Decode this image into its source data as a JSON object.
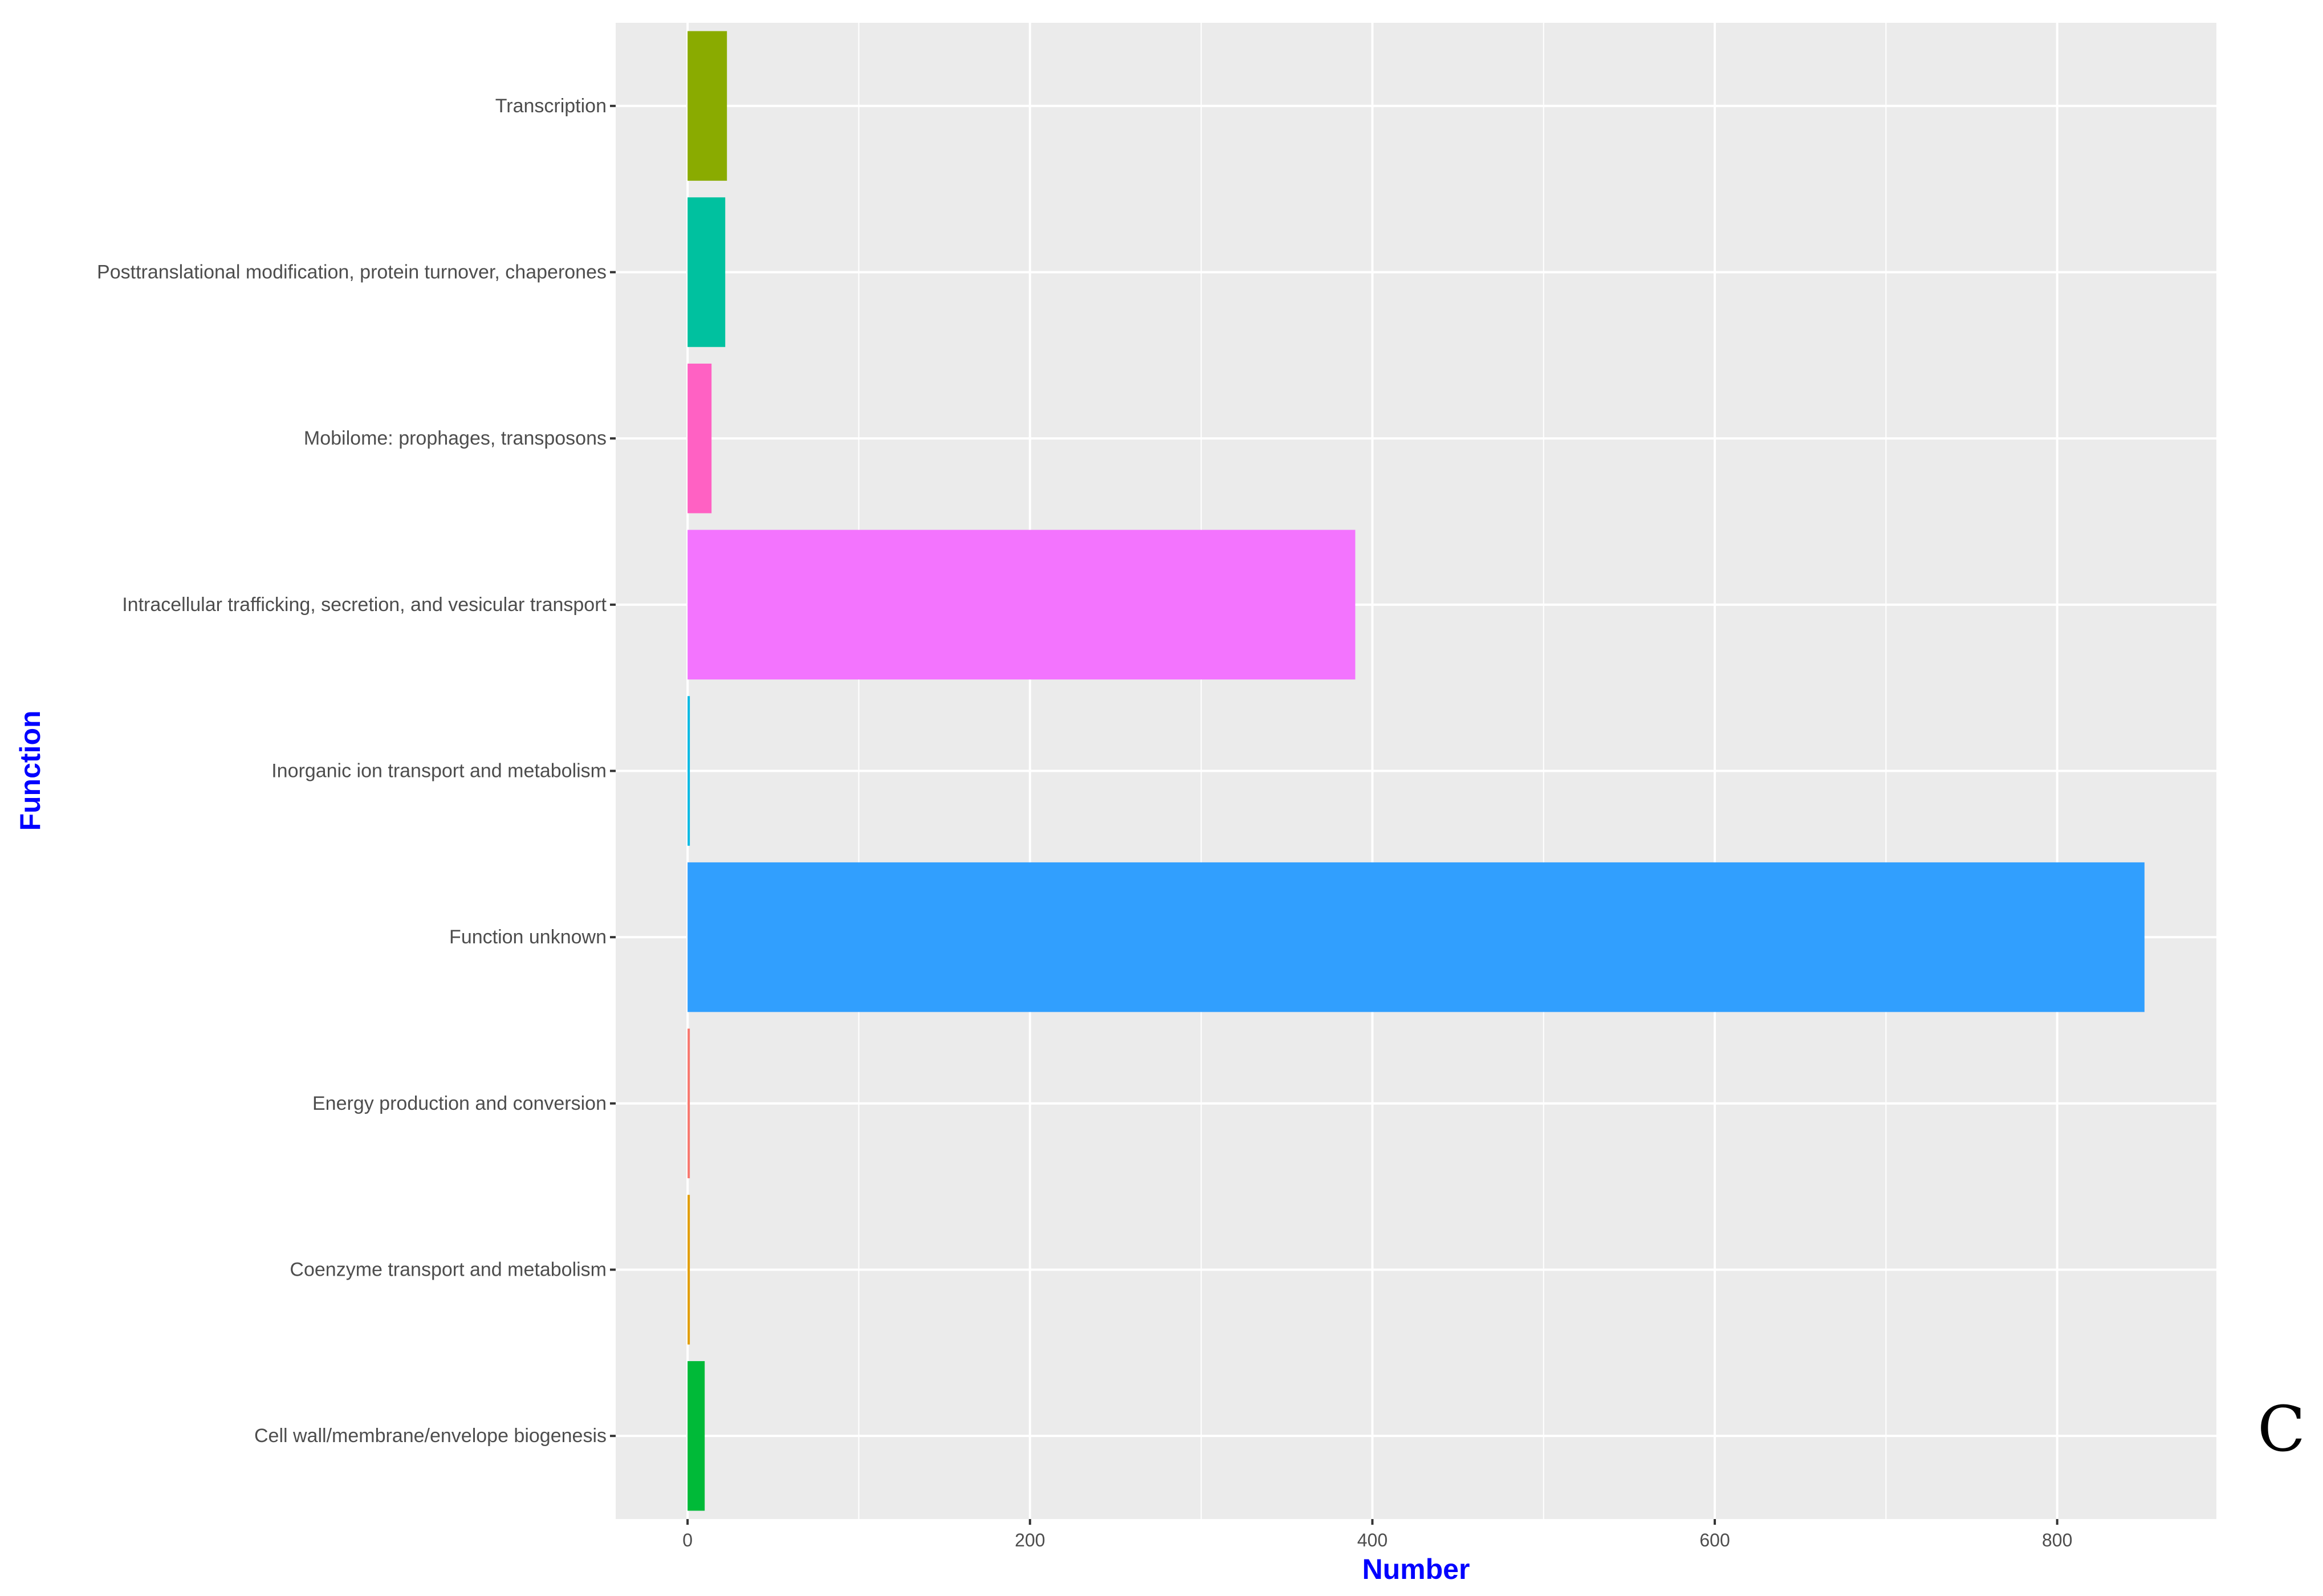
{
  "chart_data": {
    "type": "bar",
    "orientation": "horizontal",
    "categories": [
      "Transcription",
      "Posttranslational modification, protein turnover, chaperones",
      "Mobilome: prophages, transposons",
      "Intracellular trafficking, secretion, and vesicular transport",
      "Inorganic ion transport and metabolism",
      "Function unknown",
      "Energy production and conversion",
      "Coenzyme transport and metabolism",
      "Cell wall/membrane/envelope biogenesis"
    ],
    "values": [
      23,
      22,
      14,
      390,
      1,
      851,
      1,
      1,
      10
    ],
    "colors": [
      "#8aab00",
      "#00c19f",
      "#ff61c3",
      "#f374fe",
      "#00b9e3",
      "#319ffe",
      "#f8766d",
      "#e19c00",
      "#00ba38"
    ],
    "xlabel": "Number",
    "ylabel": "Function",
    "xlim": [
      -42,
      893
    ],
    "xticks": [
      0,
      200,
      400,
      600,
      800
    ],
    "grid": true,
    "legend": "none",
    "axis_title_color": "#0000ff"
  },
  "panel_label": "C"
}
